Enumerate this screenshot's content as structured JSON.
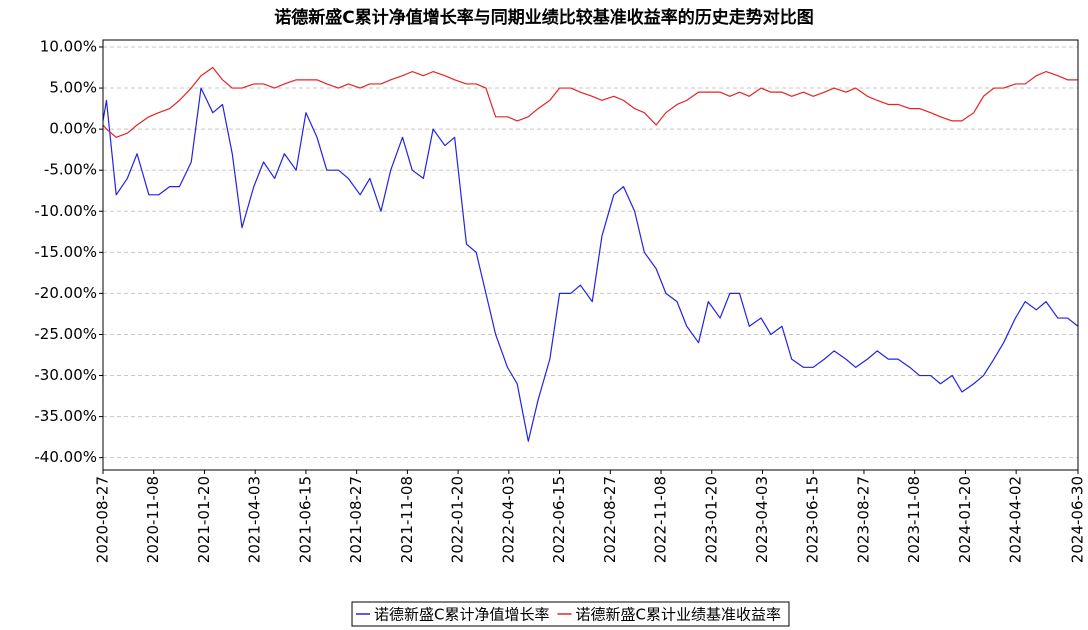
{
  "chart_data": {
    "type": "line",
    "title": "诺德新盛C累计净值增长率与同期业绩比较基准收益率的历史走势对比图",
    "x": [
      "2020-08-27",
      "2020-09-01",
      "2020-09-15",
      "2020-10-01",
      "2020-10-15",
      "2020-11-01",
      "2020-11-15",
      "2020-12-01",
      "2020-12-15",
      "2021-01-01",
      "2021-01-15",
      "2021-02-01",
      "2021-02-15",
      "2021-03-01",
      "2021-03-15",
      "2021-04-01",
      "2021-04-15",
      "2021-05-01",
      "2021-05-15",
      "2021-06-01",
      "2021-06-15",
      "2021-07-01",
      "2021-07-15",
      "2021-08-01",
      "2021-08-15",
      "2021-09-01",
      "2021-09-15",
      "2021-10-01",
      "2021-10-15",
      "2021-11-01",
      "2021-11-15",
      "2021-12-01",
      "2021-12-15",
      "2022-01-01",
      "2022-01-15",
      "2022-02-01",
      "2022-02-15",
      "2022-03-01",
      "2022-03-15",
      "2022-04-01",
      "2022-04-15",
      "2022-05-01",
      "2022-05-15",
      "2022-06-01",
      "2022-06-15",
      "2022-07-01",
      "2022-07-15",
      "2022-08-01",
      "2022-08-15",
      "2022-09-01",
      "2022-09-15",
      "2022-10-01",
      "2022-10-15",
      "2022-11-01",
      "2022-11-15",
      "2022-12-01",
      "2022-12-15",
      "2023-01-01",
      "2023-01-15",
      "2023-02-01",
      "2023-02-15",
      "2023-03-01",
      "2023-03-15",
      "2023-04-01",
      "2023-04-15",
      "2023-05-01",
      "2023-05-15",
      "2023-06-01",
      "2023-06-15",
      "2023-07-01",
      "2023-07-15",
      "2023-08-01",
      "2023-08-15",
      "2023-09-01",
      "2023-09-15",
      "2023-10-01",
      "2023-10-15",
      "2023-11-01",
      "2023-11-15",
      "2023-12-01",
      "2023-12-15",
      "2024-01-01",
      "2024-01-15",
      "2024-02-01",
      "2024-02-15",
      "2024-03-01",
      "2024-03-15",
      "2024-04-01",
      "2024-04-15",
      "2024-05-01",
      "2024-05-15",
      "2024-06-01",
      "2024-06-15",
      "2024-06-30"
    ],
    "series": [
      {
        "name": "诺德新盛C累计净值增长率",
        "color": "#2323e6",
        "values": [
          1,
          3.5,
          -8,
          -6,
          -3,
          -8,
          -8,
          -7,
          -7,
          -4,
          5,
          2,
          3,
          -3,
          -12,
          -7,
          -4,
          -6,
          -3,
          -5,
          2,
          -1,
          -5,
          -5,
          -6,
          -8,
          -6,
          -10,
          -5,
          -1,
          -5,
          -6,
          0,
          -2,
          -1,
          -14,
          -15,
          -20,
          -25,
          -29,
          -31,
          -38,
          -33,
          -28,
          -20,
          -20,
          -19,
          -21,
          -13,
          -8,
          -7,
          -10,
          -15,
          -17,
          -20,
          -21,
          -24,
          -26,
          -21,
          -23,
          -20,
          -20,
          -24,
          -23,
          -25,
          -24,
          -28,
          -29,
          -29,
          -28,
          -27,
          -28,
          -29,
          -28,
          -27,
          -28,
          -28,
          -29,
          -30,
          -30,
          -31,
          -30,
          -32,
          -31,
          -30,
          -28,
          -26,
          -23,
          -21,
          -22,
          -21,
          -23,
          -23,
          -24
        ]
      },
      {
        "name": "诺德新盛C累计业绩基准收益率",
        "color": "#e62323",
        "values": [
          0.5,
          0,
          -1,
          -0.5,
          0.5,
          1.5,
          2,
          2.5,
          3.5,
          5,
          6.5,
          7.5,
          6,
          5,
          5,
          5.5,
          5.5,
          5,
          5.5,
          6,
          6,
          6,
          5.5,
          5,
          5.5,
          5,
          5.5,
          5.5,
          6,
          6.5,
          7,
          6.5,
          7,
          6.5,
          6,
          5.5,
          5.5,
          5,
          1.5,
          1.5,
          1,
          1.5,
          2.5,
          3.5,
          5,
          5,
          4.5,
          4,
          3.5,
          4,
          3.5,
          2.5,
          2,
          0.5,
          2,
          3,
          3.5,
          4.5,
          4.5,
          4.5,
          4,
          4.5,
          4,
          5,
          4.5,
          4.5,
          4,
          4.5,
          4,
          4.5,
          5,
          4.5,
          5,
          4,
          3.5,
          3,
          3,
          2.5,
          2.5,
          2,
          1.5,
          1,
          1,
          2,
          4,
          5,
          5,
          5.5,
          5.5,
          6.5,
          7,
          6.5,
          6,
          6
        ]
      }
    ],
    "xlim": [
      "2020-08-27",
      "2024-06-30"
    ],
    "xticks": [
      "2020-08-27",
      "2020-11-08",
      "2021-01-20",
      "2021-04-03",
      "2021-06-15",
      "2021-08-27",
      "2021-11-08",
      "2022-01-20",
      "2022-04-03",
      "2022-06-15",
      "2022-08-27",
      "2022-11-08",
      "2023-01-20",
      "2023-04-03",
      "2023-06-15",
      "2023-08-27",
      "2023-11-08",
      "2024-01-20",
      "2024-04-02",
      "2024-06-30"
    ],
    "ylim": [
      -41.5,
      10.85
    ],
    "yticks": [
      {
        "value": 10,
        "label": "10.00%"
      },
      {
        "value": 5,
        "label": "5.00%"
      },
      {
        "value": 0,
        "label": "0.00%"
      },
      {
        "value": -5,
        "label": "-5.00%"
      },
      {
        "value": -10,
        "label": "-10.00%"
      },
      {
        "value": -15,
        "label": "-15.00%"
      },
      {
        "value": -20,
        "label": "-20.00%"
      },
      {
        "value": -25,
        "label": "-25.00%"
      },
      {
        "value": -30,
        "label": "-30.00%"
      },
      {
        "value": -35,
        "label": "-35.00%"
      },
      {
        "value": -40,
        "label": "-40.00%"
      }
    ],
    "grid": true,
    "legend": "bottom"
  }
}
